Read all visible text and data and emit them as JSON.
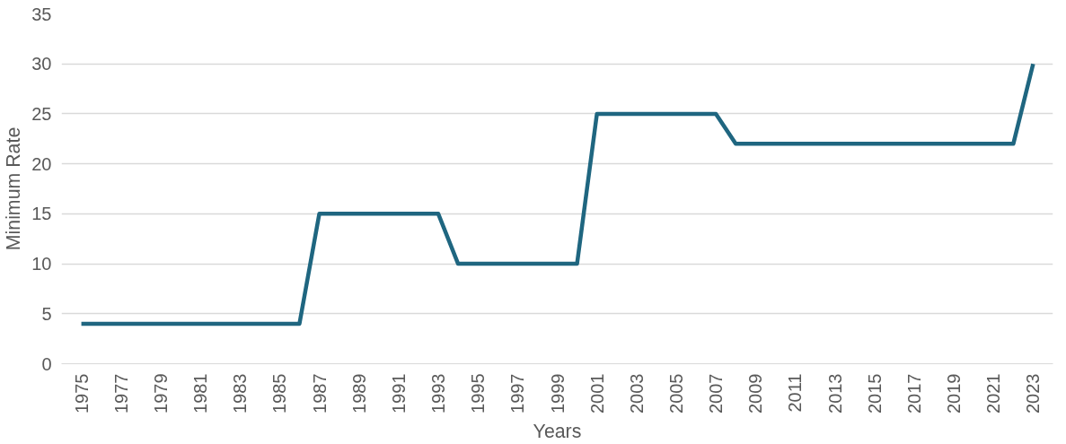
{
  "chart_data": {
    "type": "line",
    "xlabel": "Years",
    "ylabel": "Minimum Rate",
    "x": [
      1975,
      1976,
      1977,
      1978,
      1979,
      1980,
      1981,
      1982,
      1983,
      1984,
      1985,
      1986,
      1987,
      1988,
      1989,
      1990,
      1991,
      1992,
      1993,
      1994,
      1995,
      1996,
      1997,
      1998,
      1999,
      2000,
      2001,
      2002,
      2003,
      2004,
      2005,
      2006,
      2007,
      2008,
      2009,
      2010,
      2011,
      2012,
      2013,
      2014,
      2015,
      2016,
      2017,
      2018,
      2019,
      2020,
      2021,
      2022,
      2023
    ],
    "values": [
      4,
      4,
      4,
      4,
      4,
      4,
      4,
      4,
      4,
      4,
      4,
      4,
      15,
      15,
      15,
      15,
      15,
      15,
      15,
      10,
      10,
      10,
      10,
      10,
      10,
      10,
      25,
      25,
      25,
      25,
      25,
      25,
      25,
      22,
      22,
      22,
      22,
      22,
      22,
      22,
      22,
      22,
      22,
      22,
      22,
      22,
      22,
      22,
      30
    ],
    "color": "#1f6680",
    "xlim": [
      1974,
      2024
    ],
    "xticks": [
      1975,
      1977,
      1979,
      1981,
      1983,
      1985,
      1987,
      1989,
      1991,
      1993,
      1995,
      1997,
      1999,
      2001,
      2003,
      2005,
      2007,
      2009,
      2011,
      2013,
      2015,
      2017,
      2019,
      2021,
      2023
    ],
    "ylim": [
      0,
      35
    ],
    "yticks": [
      0,
      5,
      10,
      15,
      20,
      25,
      30,
      35
    ],
    "grid": "y",
    "marker": "none",
    "line_style": "solid"
  }
}
